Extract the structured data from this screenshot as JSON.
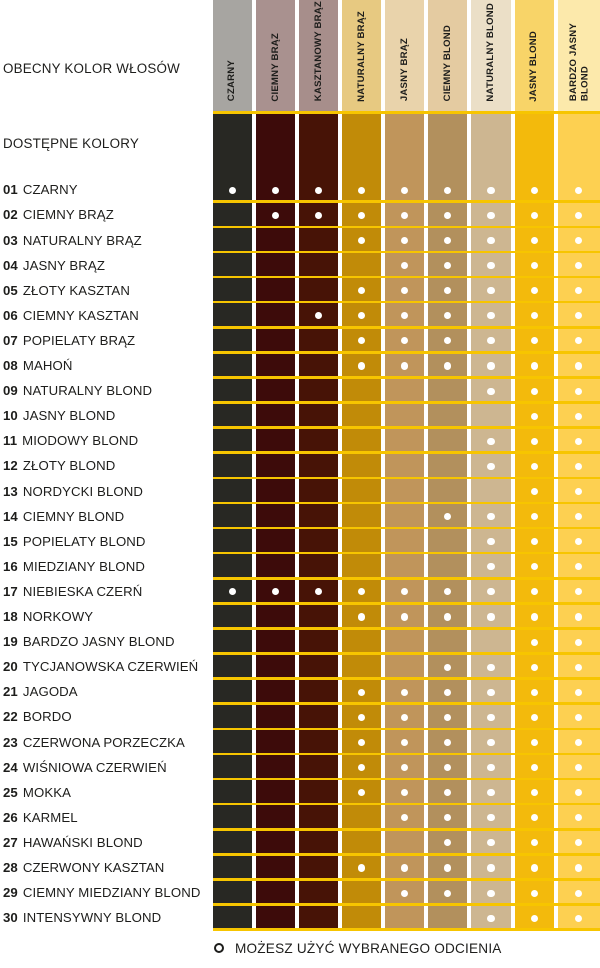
{
  "chart_data": {
    "type": "table",
    "columns_title": "OBECNY KOLOR WŁOSÓW",
    "rows_title": "DOSTĘPNE KOLORY",
    "columns": [
      {
        "label": "CZARNY",
        "header_color": "#a7a5a1",
        "body_color": "#282823"
      },
      {
        "label": "CIEMNY BRĄZ",
        "header_color": "#a9918f",
        "body_color": "#3d0b0a"
      },
      {
        "label": "KASZTANOWY BRĄZ",
        "header_color": "#a78e8b",
        "body_color": "#471306"
      },
      {
        "label": "NATURALNY BRĄZ",
        "header_color": "#e7c981",
        "body_color": "#c18b08"
      },
      {
        "label": "JASNY BRĄZ",
        "header_color": "#e9d3ab",
        "body_color": "#c0955b"
      },
      {
        "label": "CIEMNY BLOND",
        "header_color": "#e4cba1",
        "body_color": "#b2905d"
      },
      {
        "label": "NATURALNY BLOND",
        "header_color": "#ebdfc7",
        "body_color": "#cdb691"
      },
      {
        "label": "JASNY BLOND",
        "header_color": "#f8d468",
        "body_color": "#f3ba0c"
      },
      {
        "label": "BARDZO JASNY\nBLOND",
        "header_color": "#fce9ab",
        "body_color": "#fdd051"
      }
    ],
    "rows": [
      {
        "number": "01",
        "name": "CZARNY",
        "dots": [
          1,
          2,
          3,
          4,
          5,
          6,
          7,
          8,
          9
        ]
      },
      {
        "number": "02",
        "name": "CIEMNY BRĄZ",
        "dots": [
          2,
          3,
          4,
          5,
          6,
          7,
          8,
          9
        ]
      },
      {
        "number": "03",
        "name": "NATURALNY BRĄZ",
        "dots": [
          4,
          5,
          6,
          7,
          8,
          9
        ]
      },
      {
        "number": "04",
        "name": "JASNY BRĄZ",
        "dots": [
          5,
          6,
          7,
          8,
          9
        ]
      },
      {
        "number": "05",
        "name": "ZŁOTY KASZTAN",
        "dots": [
          4,
          5,
          6,
          7,
          8,
          9
        ]
      },
      {
        "number": "06",
        "name": "CIEMNY KASZTAN",
        "dots": [
          3,
          4,
          5,
          6,
          7,
          8,
          9
        ]
      },
      {
        "number": "07",
        "name": "POPIELATY BRĄZ",
        "dots": [
          4,
          5,
          6,
          7,
          8,
          9
        ]
      },
      {
        "number": "08",
        "name": "MAHOŃ",
        "dots": [
          4,
          5,
          6,
          7,
          8,
          9
        ]
      },
      {
        "number": "09",
        "name": "NATURALNY BLOND",
        "dots": [
          7,
          8,
          9
        ]
      },
      {
        "number": "10",
        "name": "JASNY BLOND",
        "dots": [
          8,
          9
        ]
      },
      {
        "number": "11",
        "name": "MIODOWY BLOND",
        "dots": [
          7,
          8,
          9
        ]
      },
      {
        "number": "12",
        "name": "ZŁOTY BLOND",
        "dots": [
          7,
          8,
          9
        ]
      },
      {
        "number": "13",
        "name": "NORDYCKI BLOND",
        "dots": [
          8,
          9
        ]
      },
      {
        "number": "14",
        "name": "CIEMNY BLOND",
        "dots": [
          6,
          7,
          8,
          9
        ]
      },
      {
        "number": "15",
        "name": "POPIELATY BLOND",
        "dots": [
          7,
          8,
          9
        ]
      },
      {
        "number": "16",
        "name": "MIEDZIANY BLOND",
        "dots": [
          7,
          8,
          9
        ]
      },
      {
        "number": "17",
        "name": "NIEBIESKA CZERŃ",
        "dots": [
          1,
          2,
          3,
          4,
          5,
          6,
          7,
          8,
          9
        ]
      },
      {
        "number": "18",
        "name": "NORKOWY",
        "dots": [
          4,
          5,
          6,
          7,
          8,
          9
        ]
      },
      {
        "number": "19",
        "name": "BARDZO JASNY BLOND",
        "dots": [
          8,
          9
        ]
      },
      {
        "number": "20",
        "name": "TYCJANOWSKA CZERWIEŃ",
        "dots": [
          6,
          7,
          8,
          9
        ]
      },
      {
        "number": "21",
        "name": "JAGODA",
        "dots": [
          4,
          5,
          6,
          7,
          8,
          9
        ]
      },
      {
        "number": "22",
        "name": "BORDO",
        "dots": [
          4,
          5,
          6,
          7,
          8,
          9
        ]
      },
      {
        "number": "23",
        "name": "CZERWONA PORZECZKA",
        "dots": [
          4,
          5,
          6,
          7,
          8,
          9
        ]
      },
      {
        "number": "24",
        "name": "WIŚNIOWA CZERWIEŃ",
        "dots": [
          4,
          5,
          6,
          7,
          8,
          9
        ]
      },
      {
        "number": "25",
        "name": "MOKKA",
        "dots": [
          4,
          5,
          6,
          7,
          8,
          9
        ]
      },
      {
        "number": "26",
        "name": "KARMEL",
        "dots": [
          5,
          6,
          7,
          8,
          9
        ]
      },
      {
        "number": "27",
        "name": "HAWAŃSKI BLOND",
        "dots": [
          6,
          7,
          8,
          9
        ]
      },
      {
        "number": "28",
        "name": "CZERWONY KASZTAN",
        "dots": [
          4,
          5,
          6,
          7,
          8,
          9
        ]
      },
      {
        "number": "29",
        "name": "CIEMNY MIEDZIANY BLOND",
        "dots": [
          5,
          6,
          7,
          8,
          9
        ]
      },
      {
        "number": "30",
        "name": "INTENSYWNY BLOND",
        "dots": [
          7,
          8,
          9
        ]
      }
    ],
    "legend": {
      "symbol": "open-circle",
      "text": "MOŻESZ UŻYĆ WYBRANEGO ODCIENIA"
    }
  },
  "colors": {
    "background": "#ffffff",
    "separator_line": "#f7c500",
    "dot": "#ffffff",
    "text": "#1d1d1b"
  }
}
